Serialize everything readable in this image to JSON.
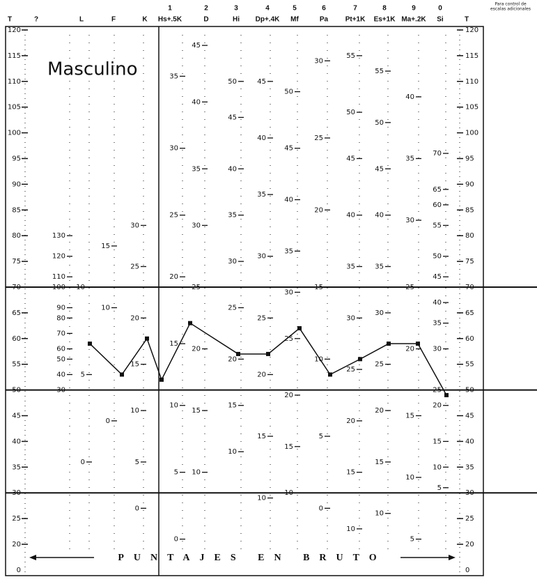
{
  "chart_data": {
    "type": "line",
    "title": "Masculino",
    "note": [
      "Para control de",
      "escalas adicionales"
    ],
    "footer_text": "PUNTAJES EN BRUTO",
    "y_axis_label": "T",
    "bottom_tick_label": "0",
    "ylim": [
      20,
      120
    ],
    "yticks": [
      20,
      25,
      30,
      35,
      40,
      45,
      50,
      55,
      60,
      65,
      70,
      75,
      80,
      85,
      90,
      95,
      100,
      105,
      110,
      115,
      120
    ],
    "reference_lines": [
      70,
      50,
      30
    ],
    "color": "#111111",
    "numbers": [
      null,
      null,
      null,
      null,
      1,
      2,
      3,
      4,
      5,
      6,
      7,
      8,
      9,
      0
    ],
    "categories": [
      "?",
      "L",
      "F",
      "K",
      "Hs+.5K",
      "D",
      "Hi",
      "Dp+.4K",
      "Mf",
      "Pa",
      "Pt+1K",
      "Es+1K",
      "Ma+.2K",
      "Si"
    ],
    "values": [
      null,
      59,
      53,
      60,
      52,
      63,
      57,
      57,
      62,
      53,
      56,
      59,
      59,
      49
    ],
    "raw_ticks": [
      [
        {
          "t": 80,
          "raw": 130
        },
        {
          "t": 76,
          "raw": 120
        },
        {
          "t": 72,
          "raw": 110
        },
        {
          "t": 70,
          "raw": 100
        },
        {
          "t": 66,
          "raw": 90
        },
        {
          "t": 64,
          "raw": 80
        },
        {
          "t": 61,
          "raw": 70
        },
        {
          "t": 58,
          "raw": 60
        },
        {
          "t": 56,
          "raw": 50
        },
        {
          "t": 53,
          "raw": 40
        },
        {
          "t": 50,
          "raw": 30
        }
      ],
      [
        {
          "t": 70,
          "raw": 10
        },
        {
          "t": 53,
          "raw": 5
        },
        {
          "t": 36,
          "raw": 0
        }
      ],
      [
        {
          "t": 78,
          "raw": 15
        },
        {
          "t": 66,
          "raw": 10
        },
        {
          "t": 44,
          "raw": 0
        }
      ],
      [
        {
          "t": 82,
          "raw": 30
        },
        {
          "t": 74,
          "raw": 25
        },
        {
          "t": 64,
          "raw": 20
        },
        {
          "t": 55,
          "raw": 15
        },
        {
          "t": 46,
          "raw": 10
        },
        {
          "t": 36,
          "raw": 5
        },
        {
          "t": 27,
          "raw": 0
        }
      ],
      [
        {
          "t": 111,
          "raw": 35
        },
        {
          "t": 97,
          "raw": 30
        },
        {
          "t": 84,
          "raw": 25
        },
        {
          "t": 72,
          "raw": 20
        },
        {
          "t": 59,
          "raw": 15
        },
        {
          "t": 47,
          "raw": 10
        },
        {
          "t": 34,
          "raw": 5
        },
        {
          "t": 21,
          "raw": 0
        }
      ],
      [
        {
          "t": 117,
          "raw": 45
        },
        {
          "t": 106,
          "raw": 40
        },
        {
          "t": 93,
          "raw": 35
        },
        {
          "t": 82,
          "raw": 30
        },
        {
          "t": 70,
          "raw": 25
        },
        {
          "t": 58,
          "raw": 20
        },
        {
          "t": 46,
          "raw": 15
        },
        {
          "t": 34,
          "raw": 10
        }
      ],
      [
        {
          "t": 110,
          "raw": 50
        },
        {
          "t": 103,
          "raw": 45
        },
        {
          "t": 93,
          "raw": 40
        },
        {
          "t": 84,
          "raw": 35
        },
        {
          "t": 75,
          "raw": 30
        },
        {
          "t": 66,
          "raw": 25
        },
        {
          "t": 56,
          "raw": 20
        },
        {
          "t": 47,
          "raw": 15
        },
        {
          "t": 38,
          "raw": 10
        }
      ],
      [
        {
          "t": 110,
          "raw": 45
        },
        {
          "t": 99,
          "raw": 40
        },
        {
          "t": 88,
          "raw": 35
        },
        {
          "t": 76,
          "raw": 30
        },
        {
          "t": 64,
          "raw": 25
        },
        {
          "t": 53,
          "raw": 20
        },
        {
          "t": 41,
          "raw": 15
        },
        {
          "t": 29,
          "raw": 10
        }
      ],
      [
        {
          "t": 108,
          "raw": 50
        },
        {
          "t": 97,
          "raw": 45
        },
        {
          "t": 87,
          "raw": 40
        },
        {
          "t": 77,
          "raw": 35
        },
        {
          "t": 69,
          "raw": 30
        },
        {
          "t": 60,
          "raw": 25
        },
        {
          "t": 49,
          "raw": 20
        },
        {
          "t": 39,
          "raw": 15
        },
        {
          "t": 30,
          "raw": 10
        }
      ],
      [
        {
          "t": 114,
          "raw": 30
        },
        {
          "t": 99,
          "raw": 25
        },
        {
          "t": 85,
          "raw": 20
        },
        {
          "t": 70,
          "raw": 15
        },
        {
          "t": 56,
          "raw": 10
        },
        {
          "t": 41,
          "raw": 5
        },
        {
          "t": 27,
          "raw": 0
        }
      ],
      [
        {
          "t": 115,
          "raw": 55
        },
        {
          "t": 104,
          "raw": 50
        },
        {
          "t": 95,
          "raw": 45
        },
        {
          "t": 84,
          "raw": 40
        },
        {
          "t": 74,
          "raw": 35
        },
        {
          "t": 64,
          "raw": 30
        },
        {
          "t": 54,
          "raw": 25
        },
        {
          "t": 44,
          "raw": 20
        },
        {
          "t": 34,
          "raw": 15
        },
        {
          "t": 23,
          "raw": 10
        }
      ],
      [
        {
          "t": 112,
          "raw": 55
        },
        {
          "t": 102,
          "raw": 50
        },
        {
          "t": 93,
          "raw": 45
        },
        {
          "t": 84,
          "raw": 40
        },
        {
          "t": 74,
          "raw": 35
        },
        {
          "t": 65,
          "raw": 30
        },
        {
          "t": 55,
          "raw": 25
        },
        {
          "t": 46,
          "raw": 20
        },
        {
          "t": 36,
          "raw": 15
        },
        {
          "t": 26,
          "raw": 10
        }
      ],
      [
        {
          "t": 107,
          "raw": 40
        },
        {
          "t": 95,
          "raw": 35
        },
        {
          "t": 83,
          "raw": 30
        },
        {
          "t": 70,
          "raw": 25
        },
        {
          "t": 58,
          "raw": 20
        },
        {
          "t": 45,
          "raw": 15
        },
        {
          "t": 33,
          "raw": 10
        },
        {
          "t": 21,
          "raw": 5
        }
      ],
      [
        {
          "t": 96,
          "raw": 70
        },
        {
          "t": 89,
          "raw": 65
        },
        {
          "t": 86,
          "raw": 60
        },
        {
          "t": 82,
          "raw": 55
        },
        {
          "t": 76,
          "raw": 50
        },
        {
          "t": 72,
          "raw": 45
        },
        {
          "t": 67,
          "raw": 40
        },
        {
          "t": 63,
          "raw": 35
        },
        {
          "t": 58,
          "raw": 30
        },
        {
          "t": 50,
          "raw": 25
        },
        {
          "t": 47,
          "raw": 20
        },
        {
          "t": 40,
          "raw": 15
        },
        {
          "t": 35,
          "raw": 10
        },
        {
          "t": 31,
          "raw": 5
        }
      ]
    ]
  }
}
